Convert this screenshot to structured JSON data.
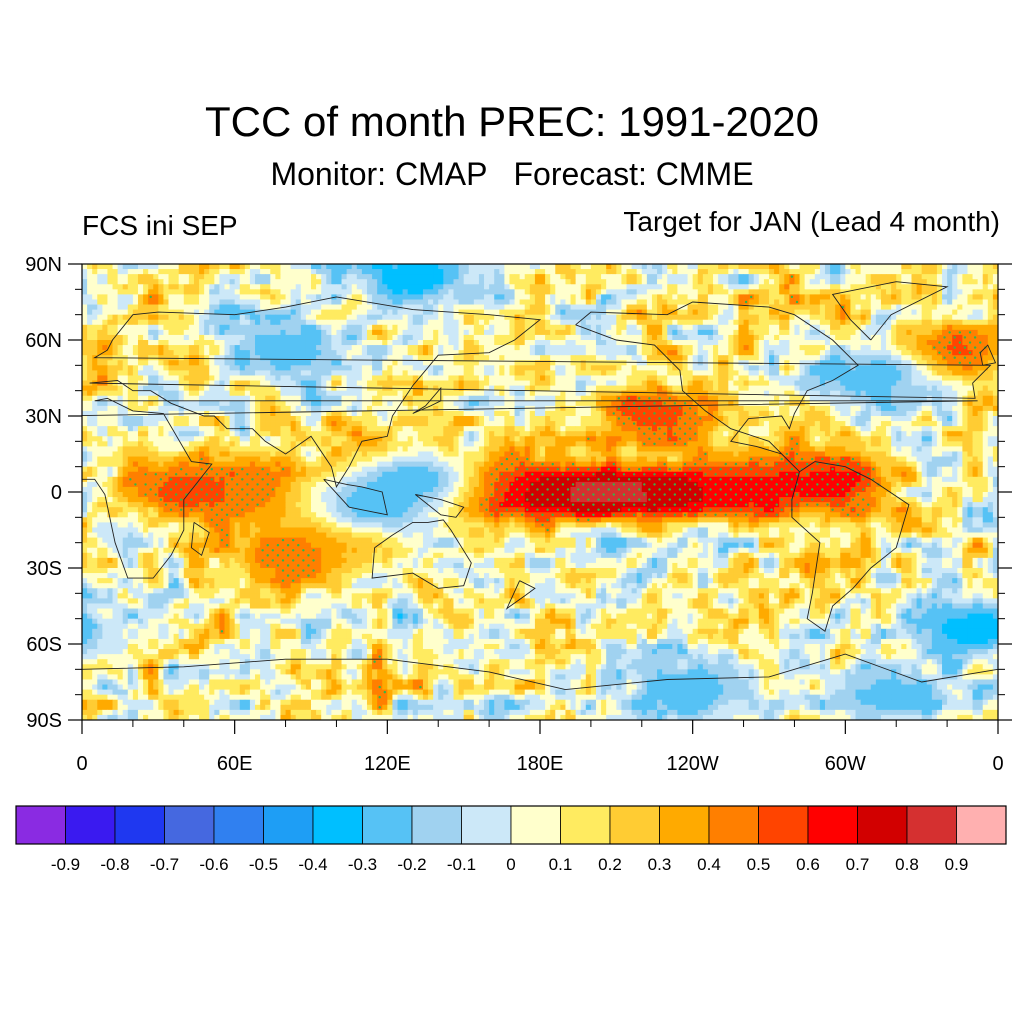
{
  "title": "TCC of month PREC: 1991-2020",
  "subtitle": "Monitor: CMAP   Forecast: CMME",
  "left_label": "FCS ini SEP",
  "right_label": "Target for JAN (Lead 4 month)",
  "lat_ticks": [
    "90N",
    "60N",
    "30N",
    "0",
    "30S",
    "60S",
    "90S"
  ],
  "lon_ticks": [
    "0",
    "60E",
    "120E",
    "180E",
    "120W",
    "60W",
    "0"
  ],
  "colorbar": {
    "colors": [
      "#8a2be2",
      "#3a1af0",
      "#1f38f0",
      "#4568e0",
      "#3080f0",
      "#1e9ef5",
      "#00bfff",
      "#56c2f5",
      "#a0d2f0",
      "#cce8f8",
      "#ffffcc",
      "#ffeb60",
      "#ffcc33",
      "#ffaa00",
      "#ff7f00",
      "#ff4400",
      "#ff0000",
      "#d20000",
      "#d53030",
      "#ffb0b0"
    ],
    "labels": [
      "-0.9",
      "-0.8",
      "-0.7",
      "-0.6",
      "-0.5",
      "-0.4",
      "-0.3",
      "-0.2",
      "-0.1",
      "0",
      "0.1",
      "0.2",
      "0.3",
      "0.4",
      "0.5",
      "0.6",
      "0.7",
      "0.8",
      "0.9"
    ]
  },
  "chart_data": {
    "type": "heatmap",
    "projection": "cylindrical-equidistant",
    "variable": "PREC",
    "lat_range": [
      -90,
      90
    ],
    "lon_range": [
      0,
      360
    ],
    "levels": [
      -0.9,
      -0.8,
      -0.7,
      -0.6,
      -0.5,
      -0.4,
      -0.3,
      -0.2,
      -0.1,
      0,
      0.1,
      0.2,
      0.3,
      0.4,
      0.5,
      0.6,
      0.7,
      0.8,
      0.9
    ],
    "significance_stippling": true,
    "features": [
      {
        "lat": 0,
        "lon": 210,
        "value": 0.95
      },
      {
        "lat": 0,
        "lon": 185,
        "value": 0.85
      },
      {
        "lat": 0,
        "lon": 240,
        "value": 0.8
      },
      {
        "lat": 2,
        "lon": 160,
        "value": 0.7
      },
      {
        "lat": 3,
        "lon": 265,
        "value": 0.6
      },
      {
        "lat": 5,
        "lon": 295,
        "value": 0.65
      },
      {
        "lat": 10,
        "lon": 120,
        "value": 0.6
      },
      {
        "lat": 0,
        "lon": 45,
        "value": 0.6
      },
      {
        "lat": 0,
        "lon": 70,
        "value": 0.5
      },
      {
        "lat": -15,
        "lon": 105,
        "value": 0.5
      },
      {
        "lat": 30,
        "lon": 225,
        "value": 0.6
      },
      {
        "lat": 55,
        "lon": 340,
        "value": 0.6
      },
      {
        "lat": -25,
        "lon": 80,
        "value": 0.5
      },
      {
        "lat": 5,
        "lon": 130,
        "value": -0.3
      },
      {
        "lat": -5,
        "lon": 115,
        "value": -0.3
      },
      {
        "lat": 55,
        "lon": 80,
        "value": -0.3
      },
      {
        "lat": 85,
        "lon": 130,
        "value": -0.4
      },
      {
        "lat": -55,
        "lon": 350,
        "value": -0.4
      },
      {
        "lat": -78,
        "lon": 240,
        "value": -0.3
      },
      {
        "lat": -80,
        "lon": 320,
        "value": -0.3
      },
      {
        "lat": 45,
        "lon": 310,
        "value": -0.3
      }
    ]
  }
}
